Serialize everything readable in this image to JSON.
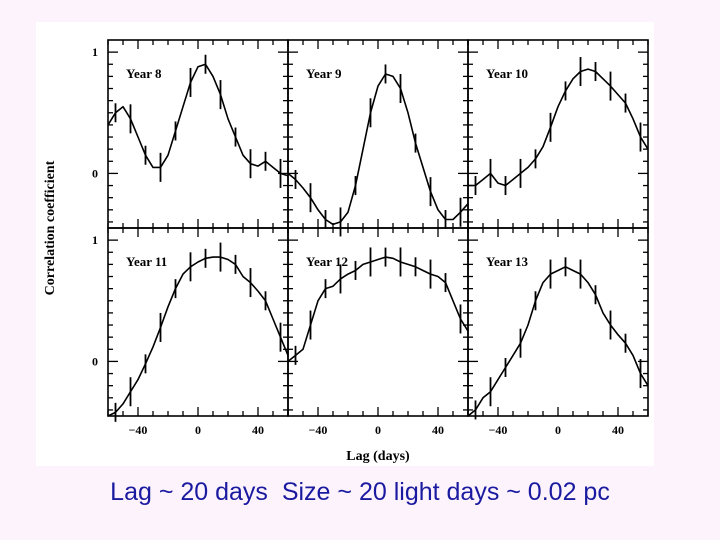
{
  "caption": "Lag ~ 20 days  Size ~ 20 light days ~ 0.02 pc",
  "chart_data": {
    "type": "line",
    "ylabel": "Correlation coefficient",
    "xlabel": "Lag (days)",
    "xlim": [
      -60,
      60
    ],
    "ylim": [
      -0.45,
      1.1
    ],
    "xticks": [
      -40,
      0,
      40
    ],
    "xtick_labels": [
      "−40",
      "0",
      "40"
    ],
    "yticks": [
      1,
      0
    ],
    "ytick_labels": [
      "1",
      "0"
    ],
    "grid": false,
    "panels": [
      {
        "title": "Year 8",
        "x": [
          -60,
          -55,
          -50,
          -45,
          -40,
          -35,
          -30,
          -25,
          -20,
          -15,
          -10,
          -5,
          0,
          5,
          10,
          15,
          20,
          25,
          30,
          35,
          40,
          45,
          50,
          55,
          60
        ],
        "y": [
          0.4,
          0.5,
          0.55,
          0.45,
          0.3,
          0.15,
          0.05,
          0.05,
          0.15,
          0.35,
          0.55,
          0.75,
          0.88,
          0.9,
          0.8,
          0.65,
          0.45,
          0.3,
          0.15,
          0.08,
          0.06,
          0.1,
          0.05,
          0.0,
          -0.02
        ]
      },
      {
        "title": "Year 9",
        "x": [
          -60,
          -55,
          -50,
          -45,
          -40,
          -35,
          -30,
          -25,
          -20,
          -15,
          -10,
          -5,
          0,
          5,
          10,
          15,
          20,
          25,
          30,
          35,
          40,
          45,
          50,
          55,
          60
        ],
        "y": [
          0.0,
          -0.05,
          -0.12,
          -0.2,
          -0.3,
          -0.38,
          -0.42,
          -0.4,
          -0.32,
          -0.1,
          0.2,
          0.5,
          0.72,
          0.82,
          0.8,
          0.7,
          0.5,
          0.25,
          0.05,
          -0.15,
          -0.3,
          -0.38,
          -0.38,
          -0.32,
          -0.25
        ]
      },
      {
        "title": "Year 10",
        "x": [
          -60,
          -55,
          -50,
          -45,
          -40,
          -35,
          -30,
          -25,
          -20,
          -15,
          -10,
          -5,
          0,
          5,
          10,
          15,
          20,
          25,
          30,
          35,
          40,
          45,
          50,
          55,
          60
        ],
        "y": [
          -0.1,
          -0.1,
          -0.05,
          0.0,
          -0.08,
          -0.1,
          -0.05,
          0.0,
          0.05,
          0.12,
          0.22,
          0.38,
          0.55,
          0.68,
          0.78,
          0.84,
          0.86,
          0.84,
          0.78,
          0.72,
          0.65,
          0.58,
          0.45,
          0.3,
          0.2
        ]
      },
      {
        "title": "Year 11",
        "x": [
          -60,
          -55,
          -50,
          -45,
          -40,
          -35,
          -30,
          -25,
          -20,
          -15,
          -10,
          -5,
          0,
          5,
          10,
          15,
          20,
          25,
          30,
          35,
          40,
          45,
          50,
          55,
          60
        ],
        "y": [
          -0.45,
          -0.42,
          -0.35,
          -0.25,
          -0.15,
          -0.02,
          0.12,
          0.28,
          0.45,
          0.6,
          0.72,
          0.78,
          0.82,
          0.85,
          0.86,
          0.86,
          0.84,
          0.8,
          0.7,
          0.65,
          0.58,
          0.5,
          0.35,
          0.2,
          0.05
        ]
      },
      {
        "title": "Year 12",
        "x": [
          -60,
          -55,
          -50,
          -45,
          -40,
          -35,
          -30,
          -25,
          -20,
          -15,
          -10,
          -5,
          0,
          5,
          10,
          15,
          20,
          25,
          30,
          35,
          40,
          45,
          50,
          55,
          60
        ],
        "y": [
          0.0,
          0.05,
          0.1,
          0.3,
          0.5,
          0.6,
          0.62,
          0.68,
          0.72,
          0.75,
          0.8,
          0.82,
          0.84,
          0.86,
          0.85,
          0.82,
          0.8,
          0.78,
          0.75,
          0.72,
          0.7,
          0.65,
          0.5,
          0.35,
          0.25
        ]
      },
      {
        "title": "Year 13",
        "x": [
          -60,
          -55,
          -50,
          -45,
          -40,
          -35,
          -30,
          -25,
          -20,
          -15,
          -10,
          -5,
          0,
          5,
          10,
          15,
          20,
          25,
          30,
          35,
          40,
          45,
          50,
          55,
          60
        ],
        "y": [
          -0.45,
          -0.4,
          -0.3,
          -0.25,
          -0.15,
          -0.05,
          0.05,
          0.15,
          0.3,
          0.5,
          0.65,
          0.72,
          0.75,
          0.78,
          0.75,
          0.72,
          0.65,
          0.55,
          0.4,
          0.3,
          0.22,
          0.15,
          0.05,
          -0.1,
          -0.2
        ]
      }
    ]
  }
}
